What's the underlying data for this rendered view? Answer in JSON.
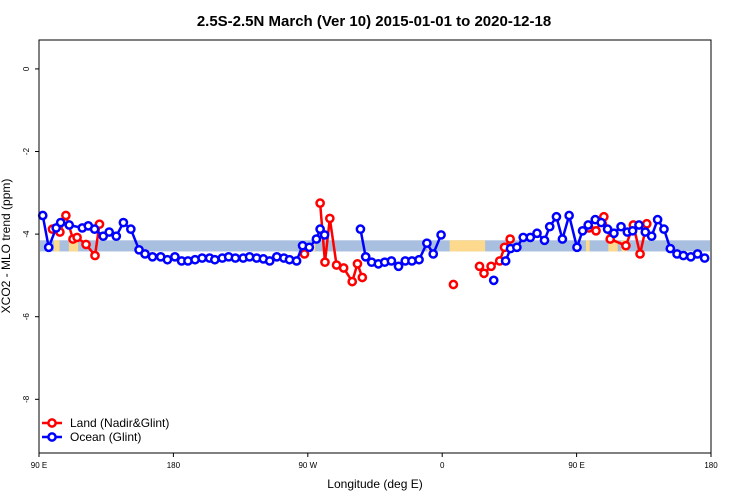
{
  "chart_data": {
    "type": "line",
    "title": "2.5S-2.5N March (Ver 10)   2015-01-01 to 2020-12-18",
    "xlabel": "Longitude (deg E)",
    "ylabel": "XCO2 - MLO trend (ppm)",
    "xlim": [
      90,
      450
    ],
    "ylim": [
      -9.3,
      0.7
    ],
    "x_ticks": [
      {
        "value": 90,
        "label": "90 E"
      },
      {
        "value": 162,
        "label": "180"
      },
      {
        "value": 234,
        "label": "90 W"
      },
      {
        "value": 306,
        "label": "0"
      },
      {
        "value": 378,
        "label": "90 E"
      },
      {
        "value": 450,
        "label": "180"
      }
    ],
    "y_ticks": [
      {
        "value": 0,
        "label": "0"
      },
      {
        "value": -2,
        "label": "-2"
      },
      {
        "value": -4,
        "label": "-4"
      },
      {
        "value": -6,
        "label": "-6"
      },
      {
        "value": -8,
        "label": "-8"
      }
    ],
    "band": {
      "ymin": -4.42,
      "ymax": -4.15,
      "base_color": "#a9bfdf",
      "land_color": "#fcd98c",
      "land_segments": [
        [
          98,
          101
        ],
        [
          106,
          111
        ],
        [
          237,
          238
        ],
        [
          298,
          300
        ],
        [
          310,
          329
        ],
        [
          383,
          385
        ],
        [
          395,
          400
        ],
        [
          402,
          405
        ]
      ]
    },
    "legend": {
      "position": "bottom-left",
      "entries": [
        {
          "name": "Land (Nadir&Glint)",
          "color": "#ff0000"
        },
        {
          "name": "Ocean (Glint)",
          "color": "#0000ff"
        }
      ]
    },
    "series": [
      {
        "name": "Land (Nadir&Glint)",
        "color": "#ff0000",
        "segments": [
          [
            [
              97.2,
              -3.88
            ],
            [
              101.2,
              -3.95
            ],
            [
              104.4,
              -3.55
            ],
            [
              108.2,
              -4.12
            ],
            [
              110.4,
              -4.08
            ],
            [
              115.2,
              -4.25
            ],
            [
              120.0,
              -4.52
            ],
            [
              122.4,
              -3.76
            ]
          ],
          [
            [
              232.2,
              -4.48
            ]
          ],
          [
            [
              240.6,
              -3.25
            ],
            [
              243.2,
              -4.68
            ],
            [
              245.8,
              -3.62
            ],
            [
              249.4,
              -4.75
            ],
            [
              253.2,
              -4.82
            ],
            [
              257.8,
              -5.15
            ],
            [
              260.6,
              -4.72
            ],
            [
              263.2,
              -5.05
            ]
          ],
          [
            [
              312.0,
              -5.22
            ]
          ],
          [
            [
              326.0,
              -4.78
            ],
            [
              328.4,
              -4.95
            ],
            [
              332.2,
              -4.78
            ],
            [
              336.8,
              -4.65
            ],
            [
              339.4,
              -4.32
            ],
            [
              342.4,
              -4.12
            ]
          ],
          [
            [
              384.6,
              -3.85
            ],
            [
              388.4,
              -3.92
            ],
            [
              392.6,
              -3.58
            ],
            [
              396.0,
              -4.12
            ],
            [
              404.4,
              -4.28
            ],
            [
              408.4,
              -3.78
            ],
            [
              412.0,
              -4.48
            ],
            [
              415.6,
              -3.75
            ]
          ]
        ]
      },
      {
        "name": "Ocean (Glint)",
        "color": "#0000ff",
        "segments": [
          [
            [
              92.0,
              -3.55
            ],
            [
              95.2,
              -4.32
            ],
            [
              99.2,
              -3.85
            ],
            [
              101.6,
              -3.72
            ],
            [
              106.2,
              -3.78
            ],
            [
              113.2,
              -3.85
            ],
            [
              116.4,
              -3.8
            ],
            [
              119.8,
              -3.88
            ],
            [
              124.4,
              -4.05
            ],
            [
              127.6,
              -3.95
            ],
            [
              131.4,
              -4.05
            ],
            [
              135.2,
              -3.72
            ],
            [
              139.2,
              -3.88
            ],
            [
              143.6,
              -4.38
            ],
            [
              146.8,
              -4.48
            ],
            [
              150.8,
              -4.55
            ],
            [
              155.2,
              -4.55
            ],
            [
              158.8,
              -4.62
            ],
            [
              162.8,
              -4.55
            ],
            [
              166.4,
              -4.65
            ],
            [
              169.8,
              -4.65
            ],
            [
              173.6,
              -4.62
            ],
            [
              177.4,
              -4.58
            ],
            [
              181.4,
              -4.58
            ],
            [
              184.2,
              -4.62
            ],
            [
              188.2,
              -4.58
            ],
            [
              191.6,
              -4.55
            ],
            [
              195.2,
              -4.58
            ],
            [
              199.4,
              -4.58
            ],
            [
              202.8,
              -4.55
            ],
            [
              206.6,
              -4.58
            ],
            [
              210.2,
              -4.6
            ],
            [
              213.6,
              -4.65
            ],
            [
              217.4,
              -4.55
            ],
            [
              221.2,
              -4.58
            ],
            [
              224.2,
              -4.62
            ],
            [
              228.0,
              -4.65
            ],
            [
              231.2,
              -4.28
            ],
            [
              234.8,
              -4.32
            ],
            [
              238.6,
              -4.12
            ],
            [
              240.6,
              -3.88
            ],
            [
              243.0,
              -4.02
            ]
          ],
          [
            [
              262.2,
              -3.88
            ],
            [
              265.0,
              -4.55
            ],
            [
              268.2,
              -4.68
            ],
            [
              271.8,
              -4.72
            ],
            [
              275.2,
              -4.68
            ],
            [
              278.8,
              -4.65
            ],
            [
              282.6,
              -4.78
            ],
            [
              286.2,
              -4.65
            ],
            [
              289.8,
              -4.65
            ],
            [
              293.6,
              -4.62
            ],
            [
              297.8,
              -4.22
            ],
            [
              301.2,
              -4.48
            ],
            [
              305.4,
              -4.02
            ]
          ],
          [
            [
              333.6,
              -5.12
            ]
          ],
          [
            [
              340.0,
              -4.65
            ],
            [
              342.6,
              -4.35
            ],
            [
              346.0,
              -4.32
            ],
            [
              349.4,
              -4.08
            ],
            [
              353.2,
              -4.08
            ],
            [
              356.8,
              -3.98
            ],
            [
              360.8,
              -4.15
            ],
            [
              363.6,
              -3.82
            ],
            [
              367.2,
              -3.58
            ],
            [
              370.4,
              -4.12
            ],
            [
              374.0,
              -3.55
            ],
            [
              378.2,
              -4.32
            ],
            [
              381.2,
              -3.92
            ],
            [
              384.2,
              -3.78
            ],
            [
              388.0,
              -3.65
            ],
            [
              391.2,
              -3.72
            ],
            [
              394.6,
              -3.88
            ],
            [
              398.0,
              -3.98
            ],
            [
              401.8,
              -3.82
            ],
            [
              405.2,
              -3.95
            ],
            [
              408.0,
              -3.92
            ],
            [
              411.4,
              -3.78
            ],
            [
              414.8,
              -3.95
            ],
            [
              418.2,
              -4.05
            ],
            [
              421.4,
              -3.65
            ],
            [
              424.8,
              -3.88
            ],
            [
              428.2,
              -4.35
            ],
            [
              431.8,
              -4.48
            ],
            [
              435.2,
              -4.52
            ],
            [
              439.2,
              -4.55
            ],
            [
              442.8,
              -4.48
            ],
            [
              446.6,
              -4.58
            ]
          ]
        ]
      }
    ]
  }
}
